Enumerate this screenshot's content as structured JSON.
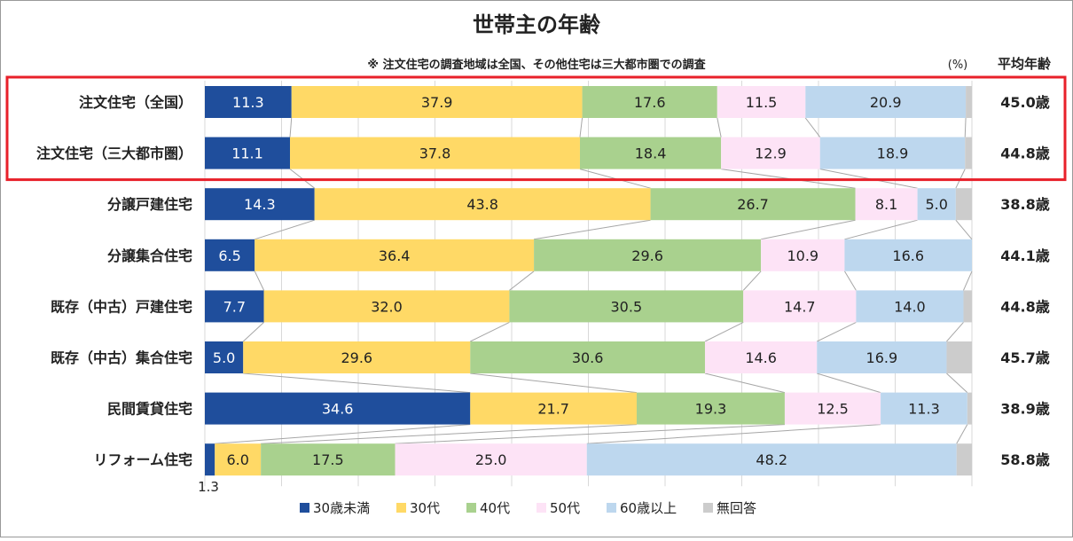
{
  "chart_data": {
    "type": "bar",
    "orientation": "horizontal",
    "stacked": true,
    "title": "世帯主の年齢",
    "subtitle": "※ 注文住宅の調査地域は全国、その他住宅は三大都市圏での調査",
    "unit_label": "(%)",
    "avg_header": "平均年齢",
    "xlim": [
      0,
      100
    ],
    "grid": true,
    "legend_position": "bottom",
    "categories": [
      "注文住宅（全国）",
      "注文住宅（三大都市圏）",
      "分譲戸建住宅",
      "分譲集合住宅",
      "既存（中古）戸建住宅",
      "既存（中古）集合住宅",
      "民間賃貸住宅",
      "リフォーム住宅"
    ],
    "average_age": [
      "45.0歳",
      "44.8歳",
      "38.8歳",
      "44.1歳",
      "44.8歳",
      "45.7歳",
      "38.9歳",
      "58.8歳"
    ],
    "series": [
      {
        "name": "30歳未満",
        "color": "#1f4e9c",
        "label_color": "#ffffff",
        "values": [
          11.3,
          11.1,
          14.3,
          6.5,
          7.7,
          5.0,
          34.6,
          1.3
        ]
      },
      {
        "name": "30代",
        "color": "#ffd966",
        "label_color": "#222222",
        "values": [
          37.9,
          37.8,
          43.8,
          36.4,
          32.0,
          29.6,
          21.7,
          6.0
        ]
      },
      {
        "name": "40代",
        "color": "#a9d18e",
        "label_color": "#222222",
        "values": [
          17.6,
          18.4,
          26.7,
          29.6,
          30.5,
          30.6,
          19.3,
          17.5
        ]
      },
      {
        "name": "50代",
        "color": "#fde3f6",
        "label_color": "#222222",
        "values": [
          11.5,
          12.9,
          8.1,
          10.9,
          14.7,
          14.6,
          12.5,
          25.0
        ]
      },
      {
        "name": "60歳以上",
        "color": "#bdd7ee",
        "label_color": "#222222",
        "values": [
          20.9,
          18.9,
          5.0,
          16.6,
          14.0,
          16.9,
          11.3,
          48.2
        ]
      },
      {
        "name": "無回答",
        "color": "#cccccc",
        "label_color": "#222222",
        "values": [
          0.8,
          0.9,
          2.1,
          0.0,
          1.1,
          3.3,
          0.6,
          2.0
        ]
      }
    ],
    "data_labels_shown": [
      [
        true,
        true,
        true,
        true,
        true,
        false
      ],
      [
        true,
        true,
        true,
        true,
        true,
        false
      ],
      [
        true,
        true,
        true,
        true,
        true,
        false
      ],
      [
        true,
        true,
        true,
        true,
        true,
        false
      ],
      [
        true,
        true,
        true,
        true,
        true,
        false
      ],
      [
        true,
        true,
        true,
        true,
        true,
        false
      ],
      [
        true,
        true,
        true,
        true,
        true,
        false
      ],
      [
        false,
        true,
        true,
        true,
        true,
        false
      ]
    ],
    "outside_label": {
      "row": 7,
      "series": 0,
      "text": "1.3"
    },
    "highlight_rows": [
      0,
      1
    ],
    "highlight_color": "#e8202a"
  }
}
